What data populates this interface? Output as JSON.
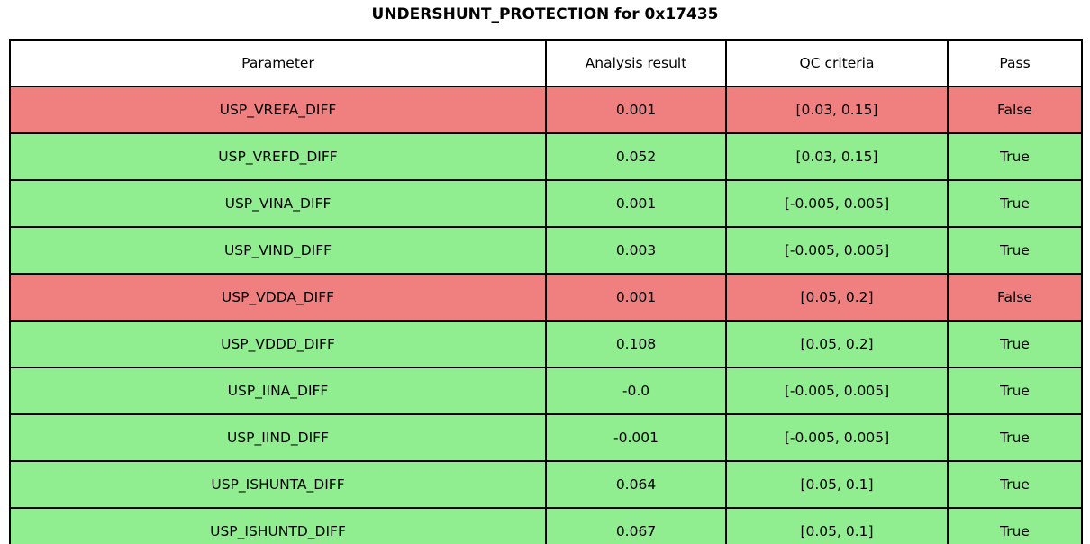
{
  "title": "UNDERSHUNT_PROTECTION for 0x17435",
  "colors": {
    "pass_true_bg": "#90EE90",
    "pass_false_bg": "#F08080",
    "header_bg": "#FFFFFF",
    "border": "#000000",
    "text": "#000000"
  },
  "chart_data": {
    "type": "table",
    "title": "UNDERSHUNT_PROTECTION for 0x17435",
    "columns": [
      "Parameter",
      "Analysis result",
      "QC criteria",
      "Pass"
    ],
    "rows": [
      {
        "parameter": "USP_VREFA_DIFF",
        "result": "0.001",
        "criteria": "[0.03, 0.15]",
        "pass": "False"
      },
      {
        "parameter": "USP_VREFD_DIFF",
        "result": "0.052",
        "criteria": "[0.03, 0.15]",
        "pass": "True"
      },
      {
        "parameter": "USP_VINA_DIFF",
        "result": "0.001",
        "criteria": "[-0.005, 0.005]",
        "pass": "True"
      },
      {
        "parameter": "USP_VIND_DIFF",
        "result": "0.003",
        "criteria": "[-0.005, 0.005]",
        "pass": "True"
      },
      {
        "parameter": "USP_VDDA_DIFF",
        "result": "0.001",
        "criteria": "[0.05, 0.2]",
        "pass": "False"
      },
      {
        "parameter": "USP_VDDD_DIFF",
        "result": "0.108",
        "criteria": "[0.05, 0.2]",
        "pass": "True"
      },
      {
        "parameter": "USP_IINA_DIFF",
        "result": "-0.0",
        "criteria": "[-0.005, 0.005]",
        "pass": "True"
      },
      {
        "parameter": "USP_IIND_DIFF",
        "result": "-0.001",
        "criteria": "[-0.005, 0.005]",
        "pass": "True"
      },
      {
        "parameter": "USP_ISHUNTA_DIFF",
        "result": "0.064",
        "criteria": "[0.05, 0.1]",
        "pass": "True"
      },
      {
        "parameter": "USP_ISHUNTD_DIFF",
        "result": "0.067",
        "criteria": "[0.05, 0.1]",
        "pass": "True"
      }
    ]
  }
}
